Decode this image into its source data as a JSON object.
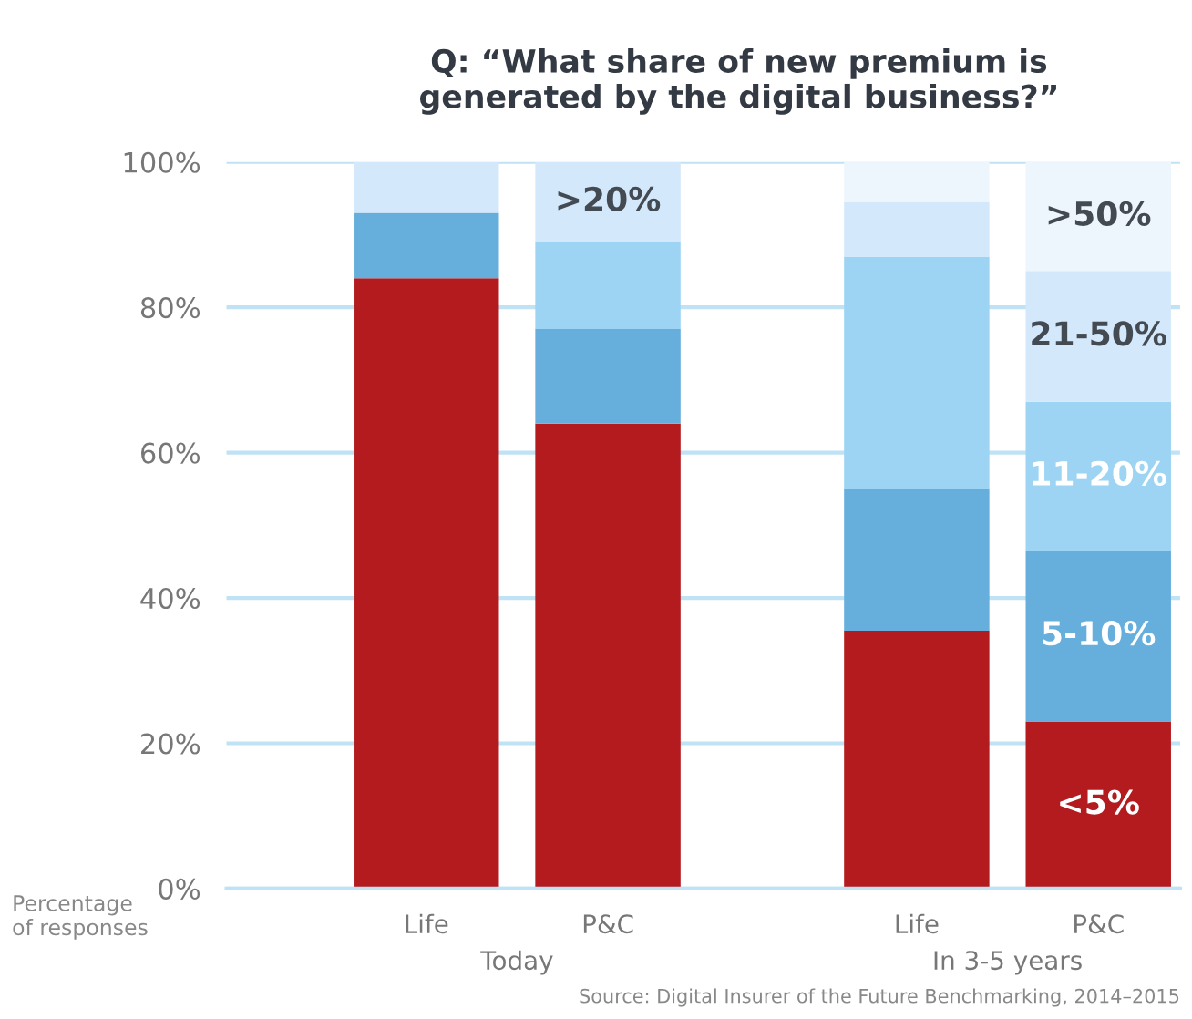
{
  "chart_data": {
    "type": "bar",
    "title": "Q: “What share of new premium is\ngenerated by the digital business?”",
    "categories": [
      "Life",
      "P&C",
      "Life",
      "P&C"
    ],
    "stacked": true,
    "series": [
      {
        "name": "<5%",
        "color": "#b41b1e",
        "values": [
          84,
          64,
          35.5,
          23
        ]
      },
      {
        "name": "5-10%",
        "color": "#66afdd",
        "values": [
          9,
          13,
          19.5,
          23.5
        ]
      },
      {
        "name": "11-20%",
        "color": "#9dd4f3",
        "values": [
          null,
          12,
          32,
          20.5
        ]
      },
      {
        "name": ">20%",
        "color": "#d3e9fb",
        "values": [
          7,
          11,
          null,
          null
        ]
      },
      {
        "name": "21-50%",
        "color": "#d3e9fb",
        "values": [
          null,
          null,
          7.5,
          18
        ]
      },
      {
        "name": ">50%",
        "color": "#edf6fd",
        "values": [
          null,
          null,
          5.5,
          15
        ]
      }
    ],
    "ylim": [
      0,
      100
    ],
    "yticks": [
      {
        "value": 0,
        "label": "0%"
      },
      {
        "value": 20,
        "label": "20%"
      },
      {
        "value": 40,
        "label": "40%"
      },
      {
        "value": 60,
        "label": "60%"
      },
      {
        "value": 80,
        "label": "80%"
      },
      {
        "value": 100,
        "label": "100%"
      }
    ],
    "grid": "y",
    "legend": false,
    "annotations": [
      "Today",
      "In 3-5 years",
      "Percentage\nof responses",
      "Source: Digital Insurer of the Future Benchmarking, 2014–2015"
    ]
  }
}
